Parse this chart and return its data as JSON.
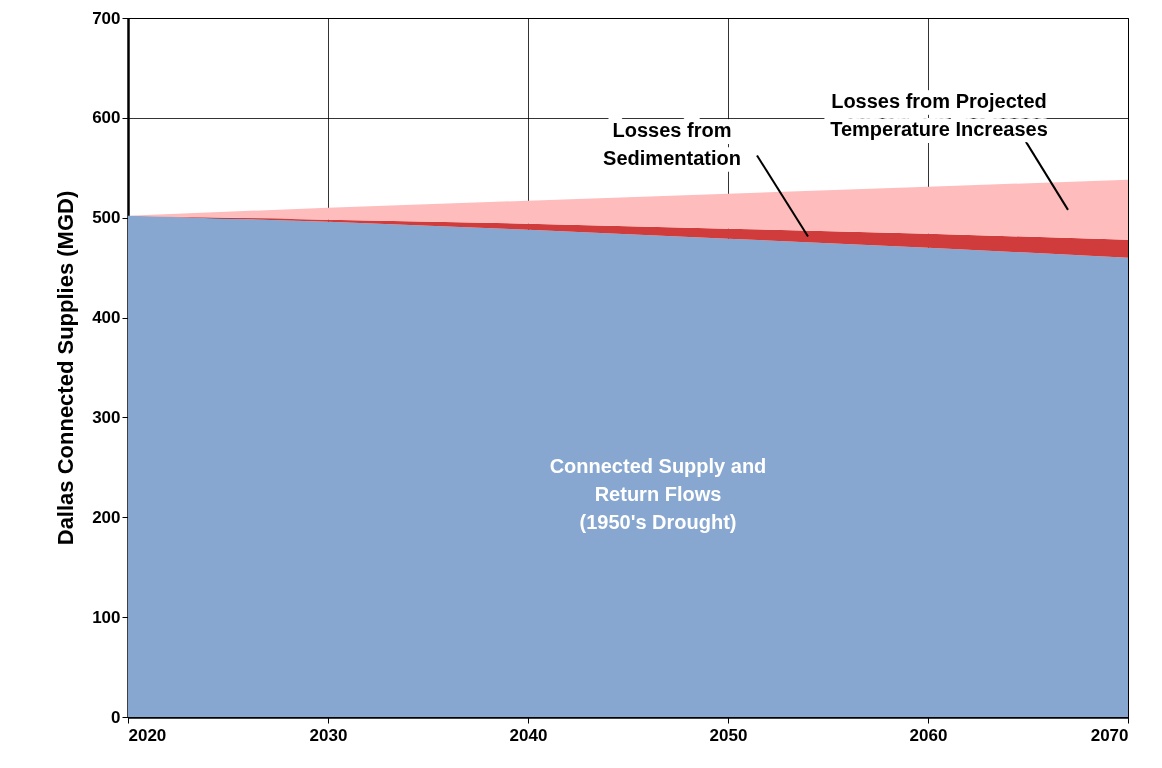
{
  "chart_data": {
    "type": "area",
    "stacked": true,
    "ylabel": "Dallas Connected Supplies (MGD)",
    "x": [
      2020,
      2030,
      2040,
      2050,
      2060,
      2070
    ],
    "series": [
      {
        "name": "Connected Supply and\nReturn Flows\n(1950's Drought)",
        "color": "#87a7d0",
        "values": [
          502,
          496,
          488,
          479,
          470,
          460
        ]
      },
      {
        "name": "Losses from\nSedimentation",
        "color": "#d03c3c",
        "values": [
          0,
          2,
          6,
          10,
          14,
          18
        ]
      },
      {
        "name": "Losses from Projected\nTemperature Increases",
        "color": "#ffbcbc",
        "values": [
          0,
          12,
          23,
          35,
          47,
          60
        ]
      }
    ],
    "xlim": [
      2020,
      2070
    ],
    "xticks": [
      2020,
      2030,
      2040,
      2050,
      2060,
      2070
    ],
    "ylim": [
      0,
      700
    ],
    "yticks": [
      0,
      100,
      200,
      300,
      400,
      500,
      600,
      700
    ],
    "grid": true
  }
}
